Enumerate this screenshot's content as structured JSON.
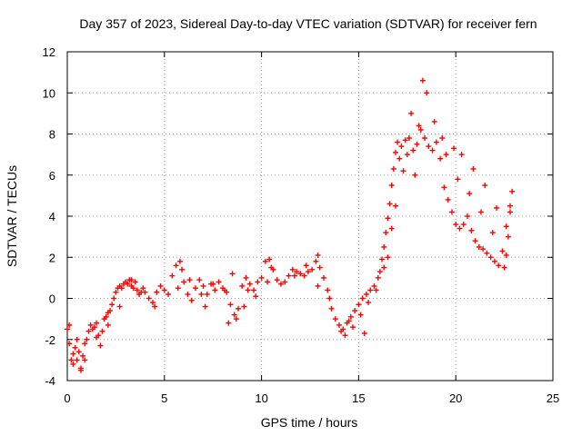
{
  "chart_data": {
    "type": "scatter",
    "title": "Day 357 of 2023, Sidereal Day-to-day VTEC variation (SDTVAR) for receiver fern",
    "xlabel": "GPS time / hours",
    "ylabel": "SDTVAR / TECUs",
    "xlim": [
      0,
      25
    ],
    "ylim": [
      -4,
      12
    ],
    "xticks": [
      0,
      5,
      10,
      15,
      20,
      25
    ],
    "yticks": [
      -4,
      -2,
      0,
      2,
      4,
      6,
      8,
      10,
      12
    ],
    "grid": true,
    "marker": "+",
    "series": [
      {
        "name": "SDTVAR",
        "color": "#ff0000",
        "x": [
          0.0,
          0.1,
          0.2,
          0.3,
          0.4,
          0.5,
          0.6,
          0.7,
          0.8,
          0.9,
          1.0,
          1.1,
          1.2,
          1.3,
          1.4,
          1.5,
          1.6,
          1.7,
          1.8,
          1.9,
          2.0,
          2.1,
          2.2,
          2.3,
          2.4,
          2.5,
          2.6,
          2.7,
          2.8,
          2.9,
          3.0,
          3.1,
          3.2,
          3.3,
          3.4,
          3.5,
          3.6,
          3.7,
          3.8,
          3.9,
          4.0,
          4.2,
          4.4,
          4.6,
          4.8,
          5.0,
          5.2,
          5.4,
          5.6,
          5.8,
          6.0,
          6.2,
          6.4,
          6.6,
          6.8,
          7.0,
          7.2,
          7.4,
          7.6,
          7.8,
          8.0,
          8.2,
          8.4,
          8.6,
          8.8,
          9.0,
          9.2,
          9.4,
          9.6,
          9.8,
          10.0,
          10.2,
          10.4,
          10.6,
          10.8,
          11.0,
          11.2,
          11.4,
          11.6,
          11.8,
          12.0,
          12.2,
          12.4,
          12.6,
          12.8,
          13.0,
          13.2,
          13.4,
          13.6,
          13.8,
          14.0,
          14.2,
          14.4,
          14.6,
          14.8,
          15.0,
          15.2,
          15.4,
          15.6,
          15.8,
          16.0,
          16.1,
          16.2,
          16.3,
          16.4,
          16.5,
          16.6,
          16.7,
          16.8,
          16.9,
          17.0,
          17.2,
          17.4,
          17.6,
          17.8,
          18.0,
          18.2,
          18.4,
          18.6,
          18.8,
          19.0,
          19.2,
          19.4,
          19.6,
          19.8,
          20.0,
          20.2,
          20.4,
          20.6,
          20.8,
          21.0,
          21.2,
          21.4,
          21.6,
          21.8,
          22.0,
          22.2,
          22.4,
          22.6,
          22.8,
          22.9,
          0.1,
          0.3,
          0.5,
          0.7,
          0.9,
          1.5,
          2.1,
          2.7,
          3.3,
          4.5,
          5.7,
          6.9,
          8.1,
          9.3,
          10.5,
          11.7,
          12.9,
          14.1,
          14.5,
          15.3,
          16.5,
          17.1,
          17.7,
          18.3,
          18.9,
          19.5,
          20.1,
          20.7,
          21.3,
          21.9,
          22.5,
          22.7,
          22.8,
          16.9,
          17.3,
          17.9,
          18.1,
          18.5,
          19.3,
          19.9,
          20.3,
          20.9,
          21.5,
          22.1,
          22.6,
          8.3,
          8.7,
          9.1,
          9.7,
          10.3,
          12.3,
          12.9,
          13.5,
          14.3,
          14.7,
          15.1,
          15.5,
          15.9,
          16.3,
          16.7,
          17.5,
          5.9,
          6.3,
          7.1,
          7.5,
          8.5
        ],
        "y": [
          -1.5,
          -2.2,
          -3.0,
          -3.2,
          -2.4,
          -2.0,
          -2.6,
          -3.4,
          -2.8,
          -2.2,
          -2.0,
          -1.6,
          -1.3,
          -1.5,
          -1.4,
          -1.2,
          -1.8,
          -2.3,
          -1.6,
          -1.0,
          -0.9,
          -0.7,
          -0.6,
          -0.3,
          0.0,
          0.3,
          0.5,
          0.6,
          0.5,
          0.7,
          0.8,
          0.7,
          0.9,
          0.6,
          0.5,
          0.8,
          0.4,
          0.2,
          0.3,
          0.5,
          0.3,
          0.0,
          -0.2,
          0.3,
          0.6,
          0.4,
          0.2,
          1.1,
          1.6,
          1.8,
          0.8,
          0.2,
          -0.1,
          0.5,
          0.9,
          0.6,
          0.2,
          0.7,
          0.4,
          0.8,
          0.5,
          0.3,
          -0.3,
          -0.8,
          -0.5,
          0.6,
          1.0,
          0.7,
          0.4,
          0.8,
          1.0,
          1.8,
          1.9,
          1.4,
          0.9,
          0.7,
          0.8,
          1.1,
          1.4,
          1.3,
          1.2,
          1.1,
          1.3,
          1.4,
          1.8,
          1.5,
          1.0,
          0.4,
          -0.5,
          -1.0,
          -1.3,
          -1.5,
          -1.2,
          -0.9,
          -0.6,
          -0.3,
          0.0,
          0.2,
          0.4,
          0.6,
          1.0,
          1.3,
          1.9,
          2.5,
          3.2,
          3.9,
          4.6,
          5.5,
          6.3,
          7.1,
          7.6,
          7.4,
          7.7,
          7.8,
          7.2,
          7.5,
          8.2,
          7.8,
          7.4,
          7.2,
          7.6,
          6.8,
          5.4,
          4.8,
          4.2,
          3.6,
          3.4,
          3.6,
          4.0,
          3.3,
          2.8,
          2.5,
          2.4,
          2.2,
          2.0,
          1.8,
          1.6,
          2.3,
          3.5,
          4.5,
          5.2,
          -1.3,
          -2.7,
          -3.0,
          -3.5,
          -3.0,
          -1.9,
          -1.3,
          -0.4,
          0.9,
          -0.4,
          0.5,
          0.2,
          0.4,
          0.4,
          1.5,
          1.1,
          2.1,
          -1.6,
          -1.1,
          -1.7,
          2.0,
          6.8,
          9.0,
          10.6,
          8.6,
          7.0,
          5.8,
          5.1,
          4.2,
          3.2,
          1.5,
          3.0,
          4.2,
          4.5,
          6.2,
          6.0,
          8.4,
          10.0,
          7.8,
          7.3,
          7.0,
          6.3,
          5.5,
          4.4,
          2.1,
          -1.2,
          -1.0,
          -0.4,
          0.1,
          0.8,
          1.6,
          0.6,
          0.0,
          -1.8,
          -1.4,
          -0.8,
          -0.2,
          0.4,
          1.5,
          3.4,
          7.0,
          1.4,
          0.9,
          -0.4,
          0.7,
          1.2
        ]
      }
    ]
  }
}
